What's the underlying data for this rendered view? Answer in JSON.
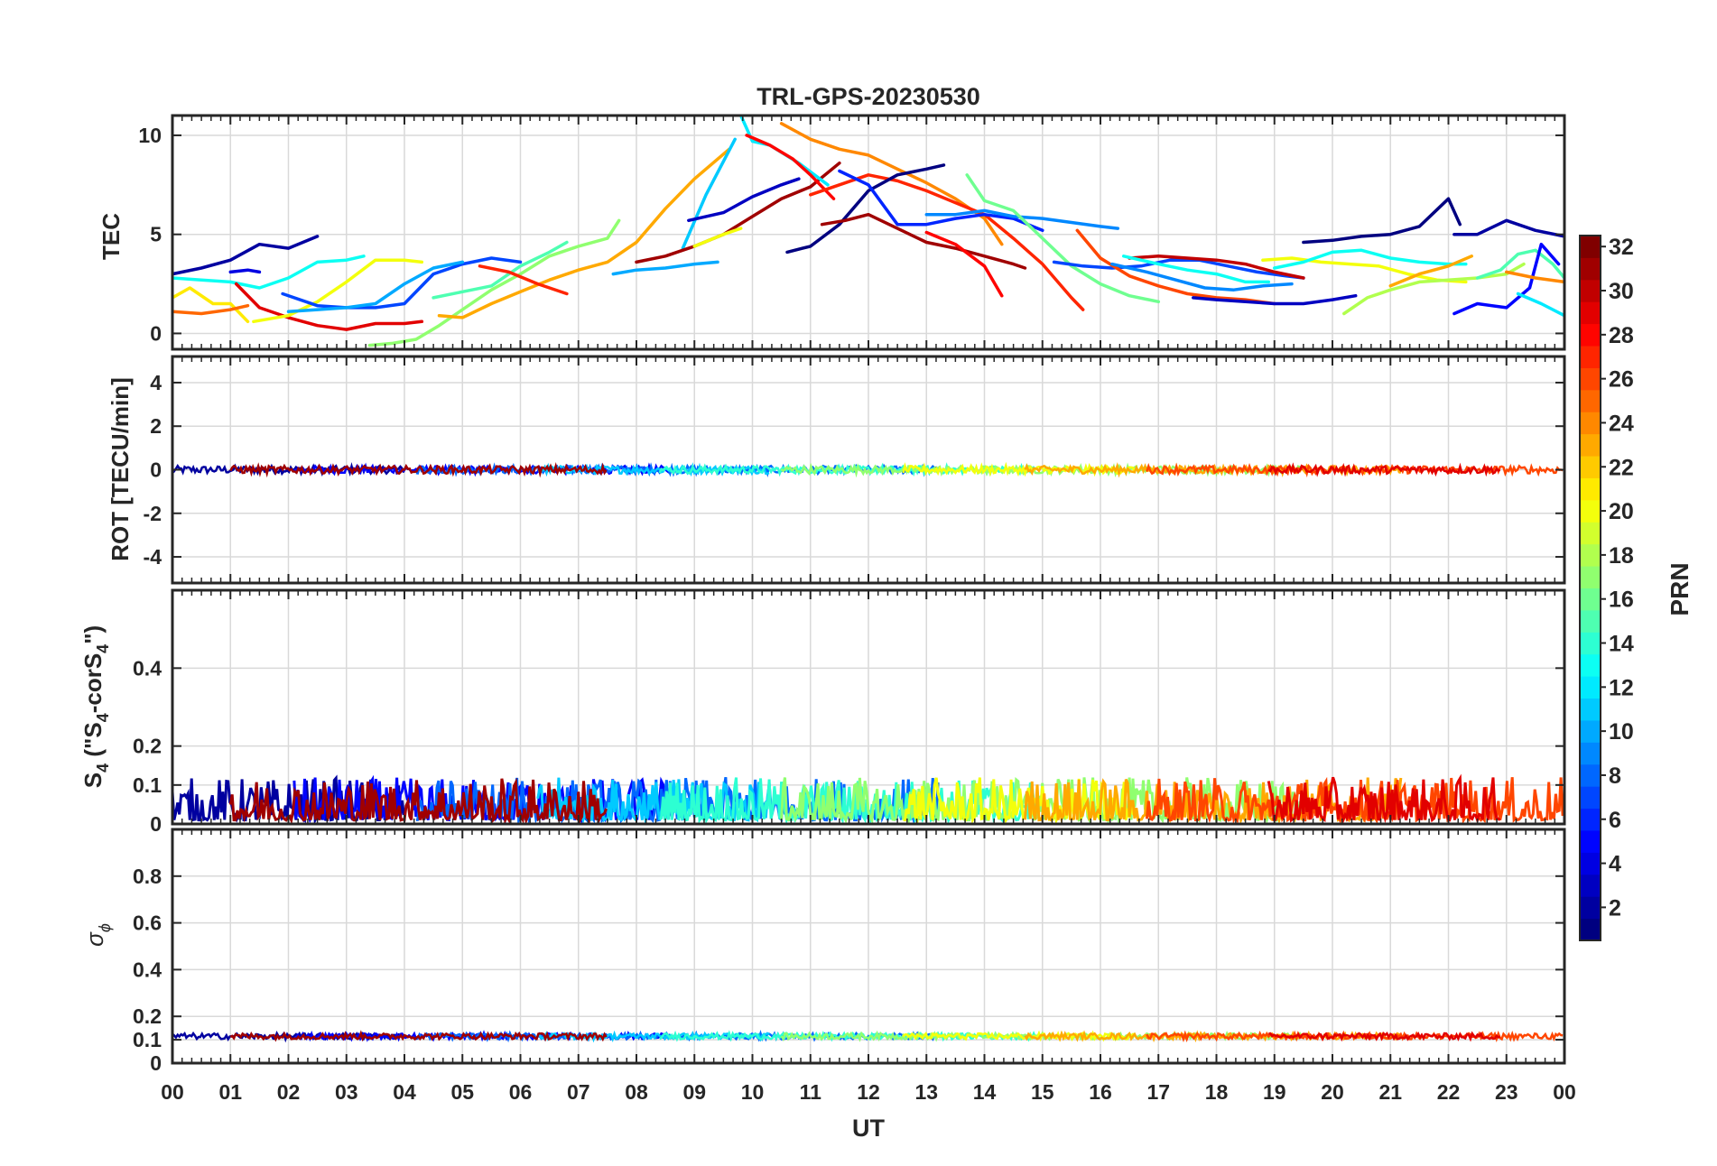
{
  "chart_data": {
    "type": "line",
    "title": "TRL-GPS-20230530",
    "xlabel": "UT",
    "x_ticks": [
      "00",
      "01",
      "02",
      "03",
      "04",
      "05",
      "06",
      "07",
      "08",
      "09",
      "10",
      "11",
      "12",
      "13",
      "14",
      "15",
      "16",
      "17",
      "18",
      "19",
      "20",
      "21",
      "22",
      "23",
      "00"
    ],
    "xlim": [
      0,
      24
    ],
    "grid": true,
    "colorbar": {
      "label": "PRN",
      "colormap": "jet",
      "range": [
        1,
        32
      ],
      "ticks": [
        "2",
        "4",
        "6",
        "8",
        "10",
        "12",
        "14",
        "16",
        "18",
        "20",
        "22",
        "24",
        "26",
        "28",
        "30",
        "32"
      ]
    },
    "panels": [
      {
        "ylabel": "TEC",
        "ylim": [
          -0.8,
          11
        ],
        "yticks": [
          "0",
          "5",
          "10"
        ],
        "series": [
          {
            "prn": 2,
            "x": [
              0.0,
              0.5,
              1.0,
              1.5,
              2.0,
              2.5
            ],
            "y": [
              3.0,
              3.3,
              3.7,
              4.5,
              4.3,
              4.9
            ]
          },
          {
            "prn": 21,
            "x": [
              0.0,
              0.3,
              0.7,
              1.0,
              1.3
            ],
            "y": [
              1.8,
              2.3,
              1.5,
              1.5,
              0.6
            ]
          },
          {
            "prn": 13,
            "x": [
              0.0,
              0.5,
              1.0,
              1.5,
              2.0,
              2.5,
              3.0,
              3.3
            ],
            "y": [
              2.8,
              2.7,
              2.6,
              2.3,
              2.8,
              3.6,
              3.7,
              3.9
            ]
          },
          {
            "prn": 25,
            "x": [
              0.0,
              0.5,
              1.0,
              1.3
            ],
            "y": [
              1.1,
              1.0,
              1.2,
              1.4
            ]
          },
          {
            "prn": 29,
            "x": [
              1.1,
              1.5,
              2.0,
              2.5,
              3.0,
              3.5,
              4.0,
              4.3
            ],
            "y": [
              2.5,
              1.3,
              0.8,
              0.4,
              0.2,
              0.5,
              0.5,
              0.6
            ]
          },
          {
            "prn": 20,
            "x": [
              1.4,
              2.0,
              2.5,
              3.0,
              3.5,
              4.0,
              4.3
            ],
            "y": [
              0.6,
              0.9,
              1.6,
              2.6,
              3.7,
              3.7,
              3.6
            ]
          },
          {
            "prn": 4,
            "x": [
              1.0,
              1.3,
              1.5
            ],
            "y": [
              3.1,
              3.2,
              3.1
            ]
          },
          {
            "prn": 7,
            "x": [
              1.9,
              2.5,
              3.0,
              3.5,
              4.0,
              4.5,
              5.0,
              5.5,
              6.0
            ],
            "y": [
              2.0,
              1.4,
              1.3,
              1.3,
              1.5,
              3.0,
              3.5,
              3.8,
              3.6
            ]
          },
          {
            "prn": 10,
            "x": [
              2.0,
              2.5,
              3.0,
              3.5,
              4.0,
              4.5,
              5.0
            ],
            "y": [
              1.1,
              1.2,
              1.3,
              1.5,
              2.5,
              3.3,
              3.6
            ]
          },
          {
            "prn": 17,
            "x": [
              3.4,
              3.8,
              4.2,
              4.6,
              5.0,
              5.5,
              6.0,
              6.5,
              7.0,
              7.5,
              7.7
            ],
            "y": [
              -0.6,
              -0.5,
              -0.3,
              0.4,
              1.2,
              2.2,
              3.0,
              3.9,
              4.4,
              4.8,
              5.7
            ]
          },
          {
            "prn": 23,
            "x": [
              4.6,
              5.0,
              5.5,
              6.0,
              6.5,
              7.0,
              7.5,
              8.0,
              8.5,
              9.0,
              9.6
            ],
            "y": [
              0.9,
              0.8,
              1.5,
              2.1,
              2.7,
              3.2,
              3.6,
              4.6,
              6.3,
              7.8,
              9.3
            ]
          },
          {
            "prn": 15,
            "x": [
              4.5,
              5.0,
              5.5,
              6.0,
              6.5,
              6.8
            ],
            "y": [
              1.8,
              2.1,
              2.4,
              3.4,
              4.1,
              4.6
            ]
          },
          {
            "prn": 27,
            "x": [
              5.3,
              5.8,
              6.3,
              6.8
            ],
            "y": [
              3.4,
              3.1,
              2.5,
              2.0
            ]
          },
          {
            "prn": 10,
            "x": [
              7.6,
              8.0,
              8.5,
              9.0,
              9.4
            ],
            "y": [
              3.0,
              3.2,
              3.3,
              3.5,
              3.6
            ]
          },
          {
            "prn": 11,
            "x": [
              8.8,
              9.2,
              9.7
            ],
            "y": [
              4.3,
              7.0,
              9.8
            ]
          },
          {
            "prn": 31,
            "x": [
              8.0,
              8.5,
              9.0,
              9.5,
              10.0,
              10.5,
              11.0,
              11.5
            ],
            "y": [
              3.6,
              3.9,
              4.4,
              5.0,
              5.9,
              6.8,
              7.4,
              8.6
            ]
          },
          {
            "prn": 20,
            "x": [
              9.0,
              9.5,
              9.8
            ],
            "y": [
              4.4,
              5.0,
              5.3
            ]
          },
          {
            "prn": 3,
            "x": [
              8.9,
              9.5,
              10.0,
              10.5,
              10.8
            ],
            "y": [
              5.7,
              6.1,
              6.9,
              7.5,
              7.8
            ]
          },
          {
            "prn": 12,
            "x": [
              9.8,
              10.0,
              10.3,
              10.8,
              11.3
            ],
            "y": [
              11.0,
              9.7,
              9.5,
              8.6,
              7.5
            ]
          },
          {
            "prn": 28,
            "x": [
              9.9,
              10.3,
              10.7,
              11.0,
              11.4
            ],
            "y": [
              10.0,
              9.5,
              8.8,
              8.0,
              6.8
            ]
          },
          {
            "prn": 24,
            "x": [
              10.5,
              11.0,
              11.5,
              12.0,
              12.5,
              13.0,
              13.5,
              14.0,
              14.3
            ],
            "y": [
              10.6,
              9.8,
              9.3,
              9.0,
              8.3,
              7.6,
              6.8,
              5.8,
              4.5
            ]
          },
          {
            "prn": 27,
            "x": [
              11.0,
              11.5,
              12.0,
              12.5,
              13.0,
              13.5,
              14.0,
              14.5,
              15.0,
              15.5,
              15.7
            ],
            "y": [
              7.0,
              7.5,
              8.0,
              7.7,
              7.2,
              6.6,
              6.0,
              4.8,
              3.5,
              1.8,
              1.2
            ]
          },
          {
            "prn": 1,
            "x": [
              10.6,
              11.0,
              11.5,
              12.0,
              12.5,
              13.0,
              13.3
            ],
            "y": [
              4.1,
              4.4,
              5.5,
              7.2,
              8.0,
              8.3,
              8.5
            ]
          },
          {
            "prn": 31,
            "x": [
              11.2,
              11.6,
              12.0,
              12.5,
              13.0,
              13.5,
              14.0,
              14.5,
              14.7
            ],
            "y": [
              5.5,
              5.7,
              6.0,
              5.3,
              4.6,
              4.3,
              3.9,
              3.5,
              3.3
            ]
          },
          {
            "prn": 6,
            "x": [
              11.5,
              12.0,
              12.5,
              13.0,
              13.5,
              14.0,
              14.5,
              15.0
            ],
            "y": [
              8.2,
              7.5,
              5.5,
              5.5,
              5.8,
              6.0,
              5.8,
              5.2
            ]
          },
          {
            "prn": 9,
            "x": [
              13.0,
              13.5,
              14.0,
              14.5,
              15.0,
              15.5,
              16.0,
              16.3
            ],
            "y": [
              6.0,
              6.0,
              6.2,
              5.9,
              5.8,
              5.6,
              5.4,
              5.3
            ]
          },
          {
            "prn": 28,
            "x": [
              13.0,
              13.5,
              14.0,
              14.3
            ],
            "y": [
              5.1,
              4.5,
              3.4,
              1.9
            ]
          },
          {
            "prn": 16,
            "x": [
              13.7,
              14.0,
              14.5,
              15.0,
              15.5,
              16.0,
              16.5,
              17.0
            ],
            "y": [
              8.0,
              6.7,
              6.2,
              4.8,
              3.4,
              2.5,
              1.9,
              1.6
            ]
          },
          {
            "prn": 7,
            "x": [
              15.2,
              15.7,
              16.2,
              16.7,
              17.2,
              17.7,
              18.2,
              18.7,
              19.2,
              19.5
            ],
            "y": [
              3.6,
              3.4,
              3.3,
              3.4,
              3.7,
              3.7,
              3.4,
              3.1,
              2.9,
              2.8
            ]
          },
          {
            "prn": 26,
            "x": [
              15.6,
              16.0,
              16.5,
              17.0,
              17.5,
              18.0,
              18.5,
              19.0
            ],
            "y": [
              5.2,
              3.8,
              2.9,
              2.4,
              2.0,
              1.8,
              1.7,
              1.5
            ]
          },
          {
            "prn": 30,
            "x": [
              16.5,
              17.0,
              17.5,
              18.0,
              18.5,
              19.0,
              19.5
            ],
            "y": [
              3.8,
              3.9,
              3.8,
              3.7,
              3.5,
              3.1,
              2.8
            ]
          },
          {
            "prn": 9,
            "x": [
              16.2,
              16.8,
              17.3,
              17.8,
              18.3,
              18.8,
              19.3
            ],
            "y": [
              3.5,
              3.1,
              2.7,
              2.3,
              2.2,
              2.4,
              2.5
            ]
          },
          {
            "prn": 13,
            "x": [
              16.4,
              17.0,
              17.5,
              18.0,
              18.5,
              18.9
            ],
            "y": [
              3.9,
              3.5,
              3.2,
              3.0,
              2.6,
              2.6
            ]
          },
          {
            "prn": 3,
            "x": [
              17.6,
              18.0,
              18.5,
              19.0,
              19.5,
              20.0,
              20.4
            ],
            "y": [
              1.8,
              1.7,
              1.6,
              1.5,
              1.5,
              1.7,
              1.9
            ]
          },
          {
            "prn": 1,
            "x": [
              19.5,
              20.0,
              20.5,
              21.0,
              21.5,
              22.0,
              22.2
            ],
            "y": [
              4.6,
              4.7,
              4.9,
              5.0,
              5.4,
              6.8,
              5.5
            ]
          },
          {
            "prn": 20,
            "x": [
              18.8,
              19.3,
              19.8,
              20.3,
              20.8,
              21.3,
              21.8,
              22.3
            ],
            "y": [
              3.7,
              3.8,
              3.6,
              3.5,
              3.4,
              3.0,
              2.7,
              2.6
            ]
          },
          {
            "prn": 13,
            "x": [
              19.0,
              19.5,
              20.0,
              20.5,
              21.0,
              21.5,
              22.0,
              22.3
            ],
            "y": [
              3.3,
              3.6,
              4.1,
              4.2,
              3.8,
              3.6,
              3.5,
              3.5
            ]
          },
          {
            "prn": 23,
            "x": [
              21.0,
              21.5,
              22.0,
              22.4
            ],
            "y": [
              2.4,
              3.0,
              3.4,
              3.9
            ]
          },
          {
            "prn": 18,
            "x": [
              20.2,
              20.6,
              21.0,
              21.5,
              22.0,
              22.5,
              23.0,
              23.3
            ],
            "y": [
              1.0,
              1.8,
              2.2,
              2.6,
              2.7,
              2.8,
              3.0,
              3.5
            ]
          },
          {
            "prn": 2,
            "x": [
              22.1,
              22.5,
              23.0,
              23.5,
              24.0
            ],
            "y": [
              5.0,
              5.0,
              5.7,
              5.2,
              4.9
            ]
          },
          {
            "prn": 15,
            "x": [
              22.5,
              22.9,
              23.2,
              23.5,
              23.8,
              24.0
            ],
            "y": [
              2.8,
              3.2,
              4.0,
              4.2,
              3.5,
              2.8
            ]
          },
          {
            "prn": 5,
            "x": [
              22.1,
              22.5,
              23.0,
              23.4,
              23.6,
              23.9
            ],
            "y": [
              1.0,
              1.5,
              1.3,
              2.3,
              4.5,
              3.5
            ]
          },
          {
            "prn": 24,
            "x": [
              23.0,
              23.5,
              24.0
            ],
            "y": [
              3.1,
              2.8,
              2.6
            ]
          },
          {
            "prn": 12,
            "x": [
              23.2,
              23.6,
              24.0
            ],
            "y": [
              2.0,
              1.5,
              0.9
            ]
          }
        ]
      },
      {
        "ylabel": "ROT [TECU/min]",
        "ylim": [
          -5.2,
          5.2
        ],
        "yticks": [
          "-4",
          "-2",
          "0",
          "2",
          "4"
        ]
      },
      {
        "ylabel": "S_4 (\"S_4-corS_4\")",
        "ylim": [
          0,
          0.6
        ],
        "yticks": [
          "0",
          "0.1",
          "0.2",
          "0.4"
        ]
      },
      {
        "ylabel": "σ_φ",
        "ylim": [
          0,
          1
        ],
        "yticks": [
          "0",
          "0.1",
          "0.2",
          "0.4",
          "0.6",
          "0.8"
        ]
      }
    ]
  }
}
